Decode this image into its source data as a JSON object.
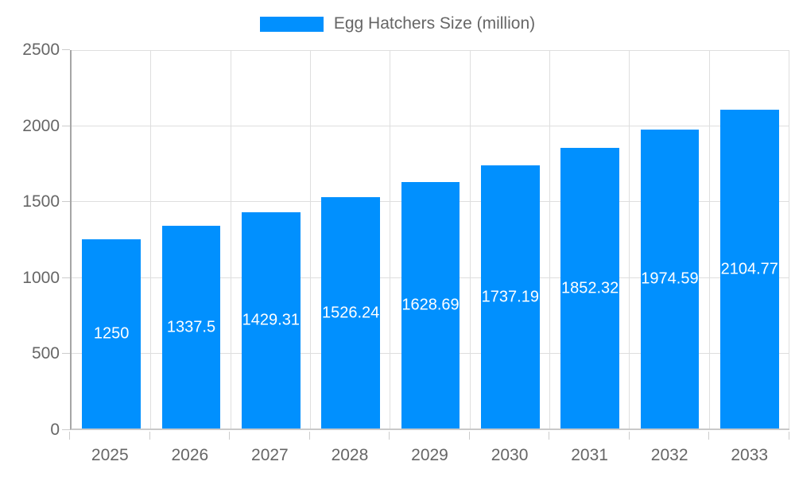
{
  "chart_data": {
    "type": "bar",
    "title": "Egg Hatchers Size (million)",
    "legend_position": "top",
    "categories": [
      "2025",
      "2026",
      "2027",
      "2028",
      "2029",
      "2030",
      "2031",
      "2032",
      "2033"
    ],
    "series": [
      {
        "name": "Egg Hatchers Size (million)",
        "values": [
          1250,
          1337.5,
          1429.31,
          1526.24,
          1628.69,
          1737.19,
          1852.32,
          1974.59,
          2104.77
        ]
      }
    ],
    "bar_value_labels": [
      "1250",
      "1337.5",
      "1429.31",
      "1526.24",
      "1628.69",
      "1737.19",
      "1852.32",
      "1974.59",
      "2104.77"
    ],
    "xlabel": "",
    "ylabel": "",
    "ylim": [
      0,
      2500
    ],
    "yticks": [
      0,
      500,
      1000,
      1500,
      2000,
      2500
    ],
    "grid": true,
    "colors": {
      "bar": "#0190fe",
      "axis_text": "#666666",
      "bar_label_text": "#ffffff",
      "gridline": "#dedede",
      "y_axis_line": "#a6a6a6",
      "x_axis_line": "#c9c9c9",
      "tick": "#cccccc"
    }
  }
}
